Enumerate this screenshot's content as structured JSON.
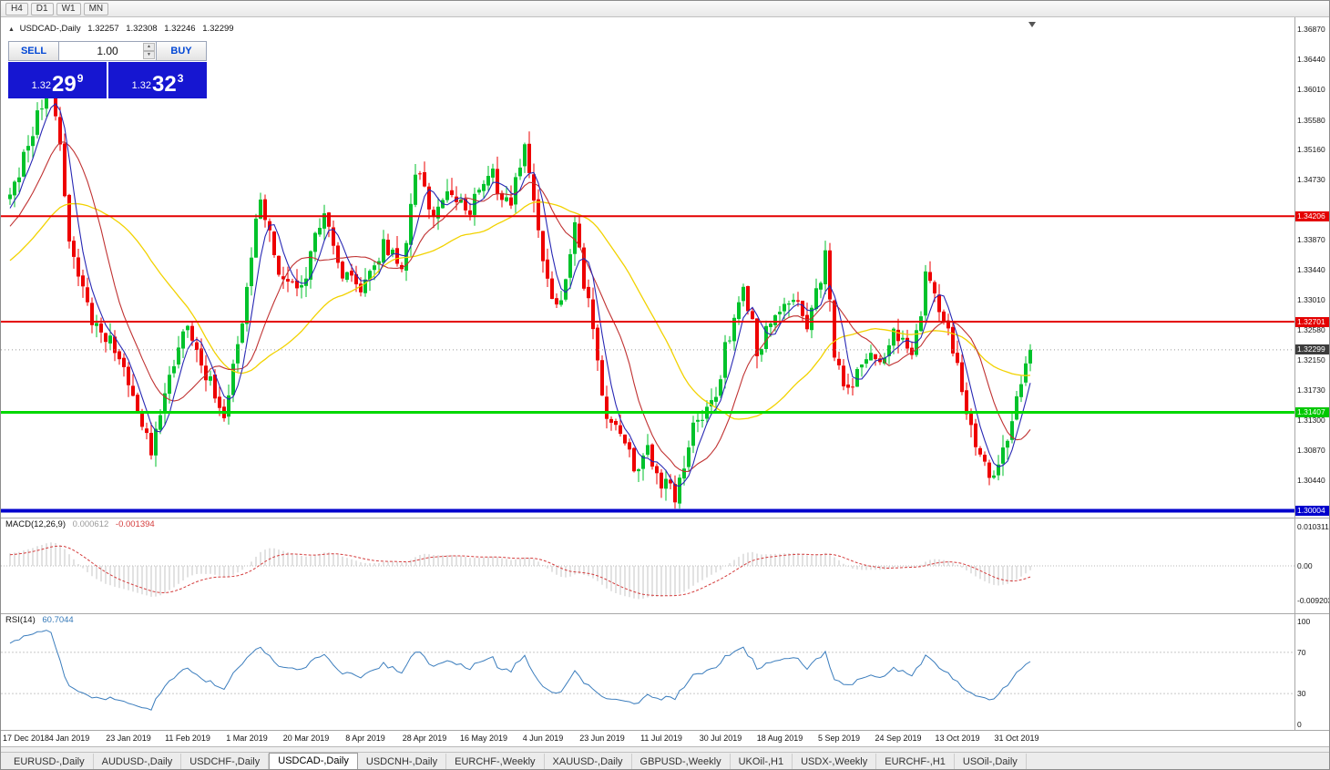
{
  "toolbar": {
    "timeframes": [
      "H4",
      "D1",
      "W1",
      "MN"
    ]
  },
  "chart_header": {
    "collapse_icon": "▲",
    "symbol": "USDCAD-,Daily",
    "open": "1.32257",
    "high": "1.32308",
    "low": "1.32246",
    "close": "1.32299"
  },
  "trade_panel": {
    "sell_label": "SELL",
    "buy_label": "BUY",
    "volume": "1.00",
    "spin_up": "▲",
    "spin_down": "▼",
    "sell_price": {
      "base": "1.32",
      "big": "29",
      "sup": "9"
    },
    "buy_price": {
      "base": "1.32",
      "big": "32",
      "sup": "3"
    }
  },
  "price_axis": {
    "scale": [
      "1.36870",
      "1.36440",
      "1.36010",
      "1.35580",
      "1.35160",
      "1.34730",
      "1.34300",
      "1.33870",
      "1.33440",
      "1.33010",
      "1.32580",
      "1.32150",
      "1.31730",
      "1.31300",
      "1.30870",
      "1.30440"
    ],
    "line_labels": [
      {
        "text": "1.34206",
        "price": 1.34206,
        "color": "#e40000",
        "name": "resistance-level-label-1-34206"
      },
      {
        "text": "1.32701",
        "price": 1.32701,
        "color": "#e40000",
        "name": "resistance-level-label-1-32701"
      },
      {
        "text": "1.32299",
        "price": 1.32299,
        "color": "#3c3c3c",
        "name": "current-price-label"
      },
      {
        "text": "1.31407",
        "price": 1.31407,
        "color": "#00c800",
        "name": "support-level-label-1-31407"
      },
      {
        "text": "1.30004",
        "price": 1.30004,
        "color": "#0000cd",
        "name": "support-level-label-1-30004"
      }
    ]
  },
  "macd": {
    "name": "MACD(12,26,9)",
    "value_main": "0.000612",
    "value_signal": "-0.001394",
    "axis": [
      "0.010311",
      "0.00",
      "-0.009203"
    ]
  },
  "rsi": {
    "name": "RSI(14)",
    "value": "60.7044",
    "axis": [
      "100",
      "70",
      "30",
      "0"
    ]
  },
  "date_axis": [
    "17 Dec 2018",
    "4 Jan 2019",
    "23 Jan 2019",
    "11 Feb 2019",
    "1 Mar 2019",
    "20 Mar 2019",
    "8 Apr 2019",
    "28 Apr 2019",
    "16 May 2019",
    "4 Jun 2019",
    "23 Jun 2019",
    "11 Jul 2019",
    "30 Jul 2019",
    "18 Aug 2019",
    "5 Sep 2019",
    "24 Sep 2019",
    "13 Oct 2019",
    "31 Oct 2019"
  ],
  "tabs": [
    {
      "label": "EURUSD-,Daily",
      "active": false
    },
    {
      "label": "AUDUSD-,Daily",
      "active": false
    },
    {
      "label": "USDCHF-,Daily",
      "active": false
    },
    {
      "label": "USDCAD-,Daily",
      "active": true
    },
    {
      "label": "USDCNH-,Daily",
      "active": false
    },
    {
      "label": "EURCHF-,Weekly",
      "active": false
    },
    {
      "label": "XAUUSD-,Daily",
      "active": false
    },
    {
      "label": "GBPUSD-,Weekly",
      "active": false
    },
    {
      "label": "UKOil-,H1",
      "active": false
    },
    {
      "label": "USDX-,Weekly",
      "active": false
    },
    {
      "label": "EURCHF-,H1",
      "active": false
    },
    {
      "label": "USOil-,Daily",
      "active": false
    }
  ],
  "chart_data": {
    "type": "candlestick",
    "symbol": "USDCAD",
    "timeframe": "Daily",
    "num_candles": 225,
    "warmup_candles": 40,
    "current_price": 1.32299,
    "price_axis_range": [
      1.2991,
      1.3704
    ],
    "ohlc_last": {
      "open": 1.32257,
      "high": 1.32308,
      "low": 1.32246,
      "close": 1.32299
    },
    "levels": [
      {
        "price": 1.34206,
        "color": "#e40000",
        "width": 2
      },
      {
        "price": 1.32701,
        "color": "#e40000",
        "width": 2
      },
      {
        "price": 1.31407,
        "color": "#00d800",
        "width": 3
      },
      {
        "price": 1.30004,
        "color": "#0000cd",
        "width": 4
      }
    ],
    "moving_averages": [
      {
        "period": 5,
        "color": "#2828b4"
      },
      {
        "period": 13,
        "color": "#c03232"
      },
      {
        "period": 34,
        "color": "#f2d200"
      }
    ],
    "indicators": {
      "macd": {
        "fast": 12,
        "slow": 26,
        "signal": 9,
        "current_main": 0.000612,
        "current_signal": -0.001394,
        "axis_max": 0.010311,
        "axis_min": -0.009203
      },
      "rsi": {
        "period": 14,
        "current": 60.7044,
        "levels": [
          70,
          30
        ]
      }
    },
    "close_anchors": [
      [
        -40,
        1.3245
      ],
      [
        -28,
        1.331
      ],
      [
        -16,
        1.336
      ],
      [
        -6,
        1.34
      ],
      [
        0,
        1.344
      ],
      [
        4,
        1.353
      ],
      [
        7,
        1.3575
      ],
      [
        9,
        1.36
      ],
      [
        11,
        1.352
      ],
      [
        13,
        1.339
      ],
      [
        16,
        1.331
      ],
      [
        19,
        1.326
      ],
      [
        22,
        1.324
      ],
      [
        25,
        1.32
      ],
      [
        28,
        1.315
      ],
      [
        31,
        1.3085
      ],
      [
        34,
        1.316
      ],
      [
        38,
        1.327
      ],
      [
        41,
        1.323
      ],
      [
        44,
        1.318
      ],
      [
        47,
        1.3125
      ],
      [
        50,
        1.324
      ],
      [
        52,
        1.332
      ],
      [
        55,
        1.345
      ],
      [
        57,
        1.339
      ],
      [
        60,
        1.333
      ],
      [
        64,
        1.3315
      ],
      [
        67,
        1.339
      ],
      [
        69,
        1.343
      ],
      [
        71,
        1.338
      ],
      [
        73,
        1.3335
      ],
      [
        77,
        1.3315
      ],
      [
        80,
        1.3355
      ],
      [
        82,
        1.338
      ],
      [
        84,
        1.336
      ],
      [
        86,
        1.3345
      ],
      [
        89,
        1.349
      ],
      [
        91,
        1.345
      ],
      [
        93,
        1.342
      ],
      [
        95,
        1.344
      ],
      [
        97,
        1.3455
      ],
      [
        99,
        1.3435
      ],
      [
        101,
        1.343
      ],
      [
        104,
        1.3465
      ],
      [
        106,
        1.348
      ],
      [
        108,
        1.345
      ],
      [
        110,
        1.343
      ],
      [
        112,
        1.35
      ],
      [
        113,
        1.353
      ],
      [
        114,
        1.348
      ],
      [
        116,
        1.339
      ],
      [
        118,
        1.334
      ],
      [
        120,
        1.329
      ],
      [
        122,
        1.333
      ],
      [
        124,
        1.341
      ],
      [
        126,
        1.333
      ],
      [
        129,
        1.321
      ],
      [
        131,
        1.314
      ],
      [
        134,
        1.311
      ],
      [
        136,
        1.3075
      ],
      [
        138,
        1.306
      ],
      [
        140,
        1.3085
      ],
      [
        142,
        1.3055
      ],
      [
        144,
        1.3035
      ],
      [
        146,
        1.302
      ],
      [
        148,
        1.307
      ],
      [
        150,
        1.313
      ],
      [
        153,
        1.3145
      ],
      [
        155,
        1.3165
      ],
      [
        157,
        1.323
      ],
      [
        159,
        1.327
      ],
      [
        161,
        1.331
      ],
      [
        163,
        1.326
      ],
      [
        164,
        1.323
      ],
      [
        166,
        1.3255
      ],
      [
        168,
        1.328
      ],
      [
        170,
        1.33
      ],
      [
        172,
        1.331
      ],
      [
        174,
        1.3285
      ],
      [
        175,
        1.327
      ],
      [
        177,
        1.331
      ],
      [
        179,
        1.336
      ],
      [
        181,
        1.323
      ],
      [
        183,
        1.319
      ],
      [
        184,
        1.317
      ],
      [
        186,
        1.32
      ],
      [
        188,
        1.323
      ],
      [
        190,
        1.321
      ],
      [
        191,
        1.32
      ],
      [
        193,
        1.3235
      ],
      [
        194,
        1.325
      ],
      [
        196,
        1.324
      ],
      [
        198,
        1.323
      ],
      [
        200,
        1.329
      ],
      [
        201,
        1.333
      ],
      [
        203,
        1.331
      ],
      [
        204,
        1.329
      ],
      [
        206,
        1.326
      ],
      [
        207,
        1.323
      ],
      [
        209,
        1.317
      ],
      [
        210,
        1.313
      ],
      [
        212,
        1.309
      ],
      [
        215,
        1.3048
      ],
      [
        217,
        1.3065
      ],
      [
        218,
        1.308
      ],
      [
        220,
        1.314
      ],
      [
        222,
        1.317
      ],
      [
        224,
        1.32299
      ]
    ],
    "style": {
      "up": "#00c22b",
      "down": "#ee0000",
      "ma_fast": "#2828b4",
      "ma_mid": "#c03232",
      "ma_slow": "#f2d200",
      "macd_hist": "#c4c4c4",
      "macd_signal": "#d43c3c",
      "rsi_line": "#3b7dbd",
      "current_dotted": "#9a9a9a"
    }
  }
}
